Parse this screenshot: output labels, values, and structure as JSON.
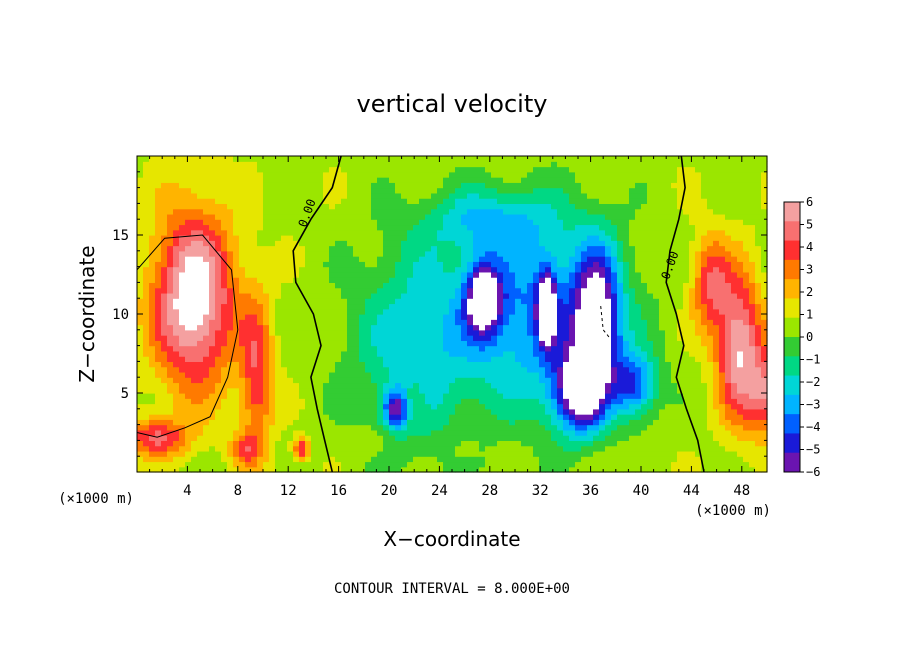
{
  "chart_data": {
    "type": "heatmap",
    "title": "vertical velocity",
    "xlabel": "X−coordinate",
    "ylabel": "Z−coordinate",
    "x_unit": "(×1000 m)",
    "y_unit": "(×1000 m)",
    "xlim": [
      0,
      50
    ],
    "ylim": [
      0,
      20
    ],
    "x_ticks": [
      4,
      8,
      12,
      16,
      20,
      24,
      28,
      32,
      36,
      40,
      44,
      48
    ],
    "y_ticks": [
      5,
      10,
      15
    ],
    "colorbar": {
      "ticks": [
        6,
        5,
        4,
        3,
        2,
        1,
        0,
        -1,
        -2,
        -3,
        -4,
        -5,
        -6
      ],
      "tick_labels": [
        "6",
        "5",
        "4",
        "3",
        "2",
        "1",
        "0",
        "−1",
        "−2",
        "−3",
        "−4",
        "−5",
        "−6"
      ],
      "colors": [
        "#f4a0a0",
        "#f87070",
        "#ff3030",
        "#ff7a00",
        "#ffb400",
        "#e6e600",
        "#9be600",
        "#33cc33",
        "#00d884",
        "#00d6d6",
        "#00b4ff",
        "#0060ff",
        "#1a1ad8",
        "#6a14b0"
      ]
    },
    "contour_labels": [
      "0.00",
      "0.00"
    ],
    "contour_interval": "CONTOUR INTERVAL = 8.000E+00",
    "grid": false,
    "fields": [
      {
        "x": 4.5,
        "z": 11,
        "w": 6.5,
        "sx": 3.2,
        "sz": 5.5
      },
      {
        "x": 9.5,
        "z": 6,
        "w": 3.5,
        "sx": 1.3,
        "sz": 5
      },
      {
        "x": 1.5,
        "z": 2.2,
        "w": 3.8,
        "sx": 2.5,
        "sz": 1.2
      },
      {
        "x": 13,
        "z": 1.5,
        "w": 4.0,
        "sx": 0.6,
        "sz": 0.7
      },
      {
        "x": 8.5,
        "z": 1.5,
        "w": 2.5,
        "sx": 1.2,
        "sz": 1.0
      },
      {
        "x": 47.8,
        "z": 8,
        "w": 5.5,
        "sx": 1.8,
        "sz": 4.5
      },
      {
        "x": 45.5,
        "z": 12,
        "w": 3.5,
        "sx": 1.5,
        "sz": 3.0
      },
      {
        "x": 50,
        "z": 5,
        "w": 4.0,
        "sx": 1.5,
        "sz": 2.5
      },
      {
        "x": 22,
        "z": 4.5,
        "w": 1.4,
        "sx": 0.9,
        "sz": 1.3
      },
      {
        "x": 18.5,
        "z": 1.8,
        "w": 0.8,
        "sx": 1.5,
        "sz": 1.0
      },
      {
        "x": 26,
        "z": 1.5,
        "w": 0.6,
        "sx": 1.2,
        "sz": 1.0
      },
      {
        "x": 22,
        "z": 8,
        "w": -2.8,
        "sx": 5.0,
        "sz": 6.5
      },
      {
        "x": 32,
        "z": 10,
        "w": -4.2,
        "sx": 6.5,
        "sz": 6.0
      },
      {
        "x": 27.5,
        "z": 11,
        "w": -6.5,
        "sx": 1.4,
        "sz": 2.2
      },
      {
        "x": 32.5,
        "z": 10.5,
        "w": -6.5,
        "sx": 0.7,
        "sz": 2.2
      },
      {
        "x": 36.5,
        "z": 9.5,
        "w": -6.5,
        "sx": 1.8,
        "sz": 4.5
      },
      {
        "x": 35,
        "z": 5,
        "w": -6.5,
        "sx": 2.0,
        "sz": 2.5
      },
      {
        "x": 39.5,
        "z": 5.5,
        "w": -4.5,
        "sx": 1.8,
        "sz": 2.0
      },
      {
        "x": 20.5,
        "z": 4,
        "w": -5.0,
        "sx": 1.0,
        "sz": 1.2
      },
      {
        "x": 28,
        "z": 16,
        "w": -2.5,
        "sx": 5.0,
        "sz": 2.0
      }
    ]
  }
}
